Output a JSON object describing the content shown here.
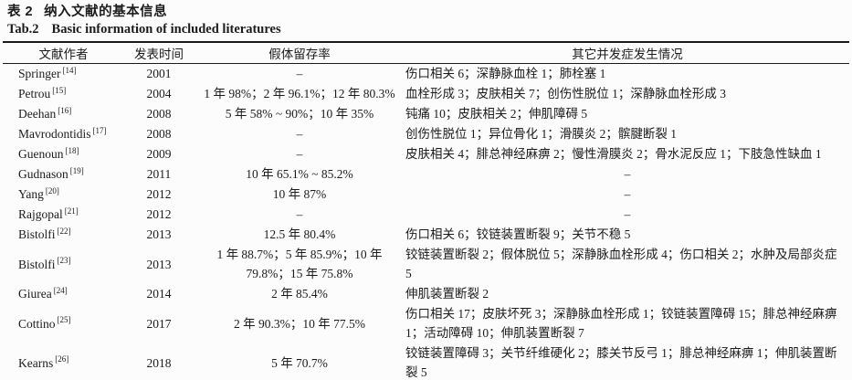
{
  "page": {
    "title_cn_label": "表 2",
    "title_cn": "纳入文献的基本信息",
    "title_en_label": "Tab.2",
    "title_en": "Basic information of included literatures"
  },
  "table": {
    "headers": {
      "author": "文献作者",
      "year": "发表时间",
      "survival": "假体留存率",
      "complications": "其它并发症发生情况"
    },
    "rows": [
      {
        "author": "Springer",
        "ref": "[14]",
        "year": "2001",
        "survival": "–",
        "complications": "伤口相关 6；深静脉血栓 1；肺栓塞 1"
      },
      {
        "author": "Petrou",
        "ref": "[15]",
        "year": "2004",
        "survival": "1 年 98%；2 年 96.1%；12 年 80.3%",
        "complications": "血栓形成 3；皮肤相关 7；创伤性脱位 1；深静脉血栓形成 3"
      },
      {
        "author": "Deehan",
        "ref": "[16]",
        "year": "2008",
        "survival": "5 年 58% ~ 90%；10 年 35%",
        "complications": "钝痛 10；皮肤相关 2；伸肌障碍 5"
      },
      {
        "author": "Mavrodontidis",
        "ref": "[17]",
        "year": "2008",
        "survival": "–",
        "complications": "创伤性脱位 1；异位骨化 1；滑膜炎 2；髌腱断裂 1"
      },
      {
        "author": "Guenoun",
        "ref": "[18]",
        "year": "2009",
        "survival": "–",
        "complications": "皮肤相关 4；腓总神经麻痹 2；慢性滑膜炎 2；骨水泥反应 1；下肢急性缺血 1"
      },
      {
        "author": "Gudnason",
        "ref": "[19]",
        "year": "2011",
        "survival": "10 年 65.1% ~ 85.2%",
        "complications": "–"
      },
      {
        "author": "Yang",
        "ref": "[20]",
        "year": "2012",
        "survival": "10 年 87%",
        "complications": "–"
      },
      {
        "author": "Rajgopal",
        "ref": "[21]",
        "year": "2012",
        "survival": "–",
        "complications": "–"
      },
      {
        "author": "Bistolfi",
        "ref": "[22]",
        "year": "2013",
        "survival": "12.5 年 80.4%",
        "complications": "伤口相关 6；铰链装置断裂 9；关节不稳 5"
      },
      {
        "author": "Bistolfi",
        "ref": "[23]",
        "year": "2013",
        "survival": "1 年 88.7%；5 年 85.9%；10 年 79.8%；15 年 75.8%",
        "complications": "铰链装置断裂 2；假体脱位 5；深静脉血栓形成 4；伤口相关 2；水肿及局部炎症 5"
      },
      {
        "author": "Giurea",
        "ref": "[24]",
        "year": "2014",
        "survival": "2 年 85.4%",
        "complications": "伸肌装置断裂 2"
      },
      {
        "author": "Cottino",
        "ref": "[25]",
        "year": "2017",
        "survival": "2 年 90.3%；10 年 77.5%",
        "complications": "伤口相关 17；皮肤坏死 3；深静脉血栓形成 1；铰链装置障碍 15；腓总神经麻痹 1；活动障碍 10；伸肌装置断裂 7"
      },
      {
        "author": "Kearns",
        "ref": "[26]",
        "year": "2018",
        "survival": "5 年 70.7%",
        "complications": "铰链装置障碍 3；关节纤维硬化 2；膝关节反弓 1；腓总神经麻痹 1；伸肌装置断裂 5"
      }
    ]
  }
}
